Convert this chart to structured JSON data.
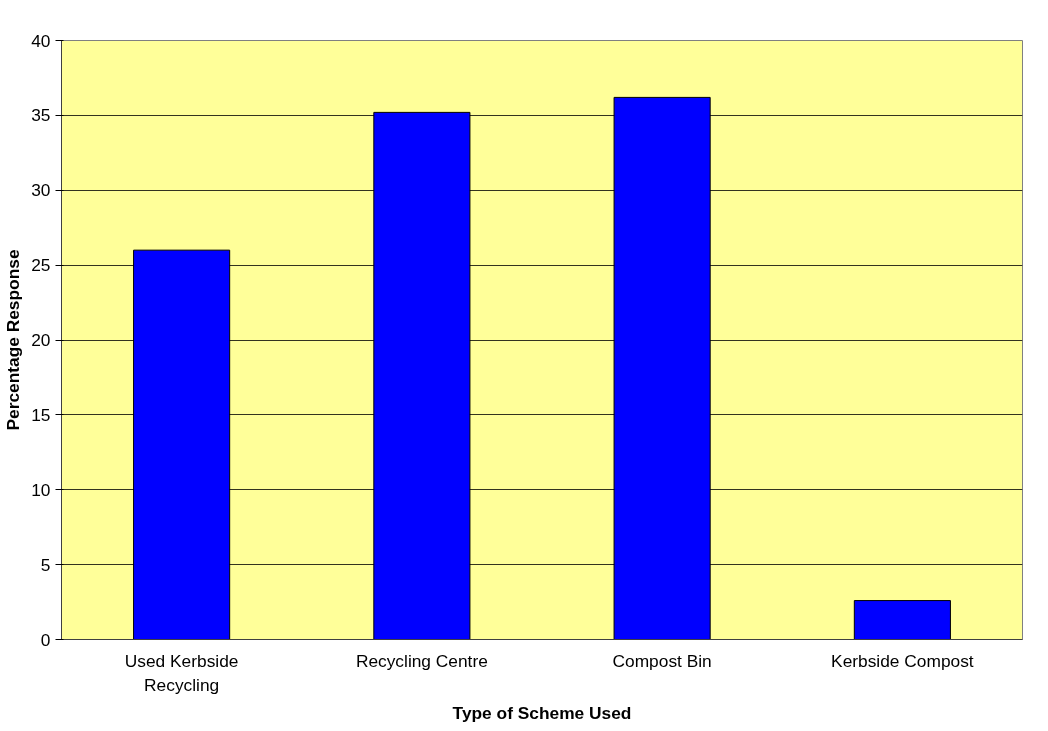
{
  "chart_data": {
    "type": "bar",
    "xlabel": "Type of Scheme Used",
    "ylabel": "Percentage Response",
    "categories": [
      "Used Kerbside\nRecycling",
      "Recycling Centre",
      "Compost Bin",
      "Kerbside Compost"
    ],
    "values": [
      26,
      35.2,
      36.2,
      2.6
    ],
    "color": "#0000ff",
    "ylim": [
      0,
      40
    ],
    "yticks": [
      0,
      5,
      10,
      15,
      20,
      25,
      30,
      35,
      40
    ],
    "grid": "y"
  }
}
